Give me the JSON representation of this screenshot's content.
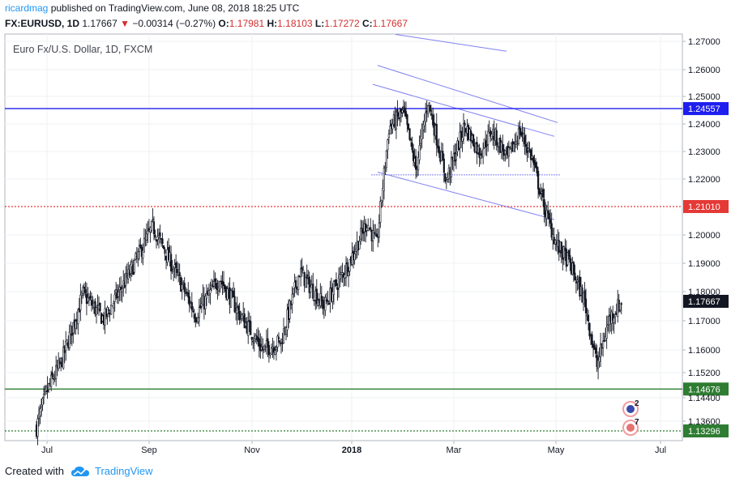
{
  "header": {
    "user": "ricardmag",
    "text": " published on TradingView.com, June 08, 2018 18:25 UTC"
  },
  "quote": {
    "symbol": "FX:EURUSD, 1D",
    "last": "1.17667",
    "change": "−0.00314 (−0.27%)",
    "o_label": "O:",
    "o": "1.17981",
    "h_label": "H:",
    "h": "1.18103",
    "l_label": "L:",
    "l": "1.17272",
    "c_label": "C:",
    "c": "1.17667"
  },
  "legend": "Euro Fx/U.S. Dollar, 1D, FXCM",
  "footer": {
    "created": "Created with",
    "brand": "TradingView"
  },
  "chart_data": {
    "type": "candlestick",
    "title": "Euro Fx/U.S. Dollar, 1D, FXCM",
    "x_ticks": [
      "Jul",
      "Sep",
      "Nov",
      "2018",
      "Mar",
      "May",
      "Jul"
    ],
    "y_ticks": [
      "1.27000",
      "1.26000",
      "1.25000",
      "1.24000",
      "1.23000",
      "1.22000",
      "1.20000",
      "1.19000",
      "1.18000",
      "1.17000",
      "1.16000",
      "1.15200",
      "1.14400",
      "1.13600"
    ],
    "ylim": [
      1.131,
      1.275
    ],
    "horizontal_levels": [
      {
        "value": 1.24557,
        "label": "1.24557",
        "color": "#1e1ef0",
        "style": "solid"
      },
      {
        "value": 1.2101,
        "label": "1.21010",
        "color": "#e53935",
        "style": "dotted"
      },
      {
        "value": 1.14676,
        "label": "1.14676",
        "color": "#2e7d32",
        "style": "solid"
      },
      {
        "value": 1.13296,
        "label": "1.13296",
        "color": "#2e7d32",
        "style": "dotted"
      }
    ],
    "last_price": {
      "value": 1.17667,
      "label": "1.17667"
    },
    "anchors": [
      [
        0,
        1.134
      ],
      [
        8,
        1.1455
      ],
      [
        20,
        1.1553
      ],
      [
        38,
        1.1792
      ],
      [
        55,
        1.1705
      ],
      [
        75,
        1.1855
      ],
      [
        95,
        1.203
      ],
      [
        110,
        1.19
      ],
      [
        130,
        1.172
      ],
      [
        150,
        1.1846
      ],
      [
        165,
        1.173
      ],
      [
        185,
        1.16
      ],
      [
        200,
        1.163
      ],
      [
        215,
        1.187
      ],
      [
        235,
        1.175
      ],
      [
        255,
        1.1898
      ],
      [
        270,
        1.2045
      ],
      [
        278,
        1.1965
      ],
      [
        288,
        1.2385
      ],
      [
        300,
        1.2445
      ],
      [
        310,
        1.2235
      ],
      [
        320,
        1.2485
      ],
      [
        335,
        1.2195
      ],
      [
        350,
        1.2395
      ],
      [
        362,
        1.2295
      ],
      [
        372,
        1.2375
      ],
      [
        385,
        1.2275
      ],
      [
        395,
        1.2375
      ],
      [
        405,
        1.2275
      ],
      [
        415,
        1.2095
      ],
      [
        425,
        1.1965
      ],
      [
        435,
        1.1905
      ],
      [
        448,
        1.1765
      ],
      [
        458,
        1.1545
      ],
      [
        468,
        1.1705
      ],
      [
        478,
        1.1765
      ]
    ],
    "trendlines": [
      {
        "from": [
          1.2725,
          0
        ],
        "to": [
          1.2665,
          0
        ]
      },
      {
        "from": [
          1.2615
        ],
        "to": [
          1.2405
        ]
      },
      {
        "from": [
          1.2545
        ],
        "to": [
          1.2355
        ]
      },
      {
        "from": [
          1.2225
        ],
        "to": [
          1.2055
        ]
      },
      {
        "from": [
          1.2215
        ],
        "to": [
          1.2215
        ]
      }
    ],
    "event_badges": [
      "2",
      "7"
    ]
  }
}
